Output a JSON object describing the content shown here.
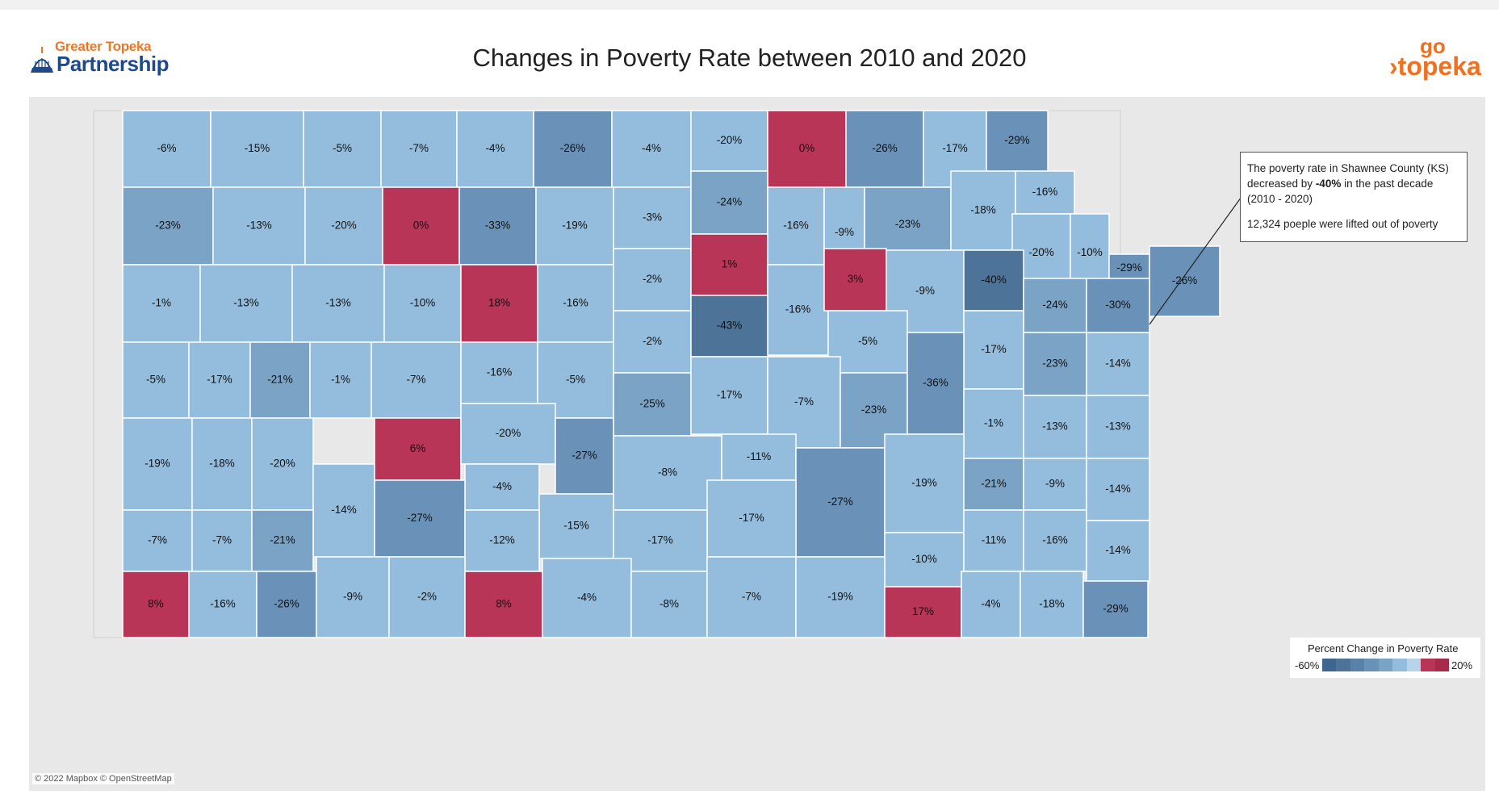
{
  "header": {
    "logo_left_line1": "Greater Topeka",
    "logo_left_line2": "Partnership",
    "title": "Changes in Poverty Rate between 2010 and 2020",
    "logo_right_line1": "go",
    "logo_right_line2": "›topeka"
  },
  "tooltip": {
    "line1": "The poverty rate in Shawnee County (KS)",
    "line2_pre": "decreased by ",
    "line2_bold": "-40%",
    "line2_post": " in the past decade",
    "line3": "(2010 - 2020)",
    "line4": "12,324 poeple were lifted out of poverty"
  },
  "legend": {
    "title": "Percent Change in Poverty Rate",
    "min_label": "-60%",
    "max_label": "20%",
    "min_value": -60,
    "max_value": 20
  },
  "attribution": "© 2022 Mapbox © OpenStreetMap",
  "colors": {
    "increase": "#b83558",
    "light": "#94bddd",
    "mid": "#7aa3c6",
    "dark": "#6a91b8",
    "darkest": "#4d7399",
    "water": "#e8e8e8"
  },
  "counties": [
    {
      "label": "-6%",
      "value": -6
    },
    {
      "label": "-15%",
      "value": -15
    },
    {
      "label": "-5%",
      "value": -5
    },
    {
      "label": "-7%",
      "value": -7
    },
    {
      "label": "-4%",
      "value": -4
    },
    {
      "label": "-26%",
      "value": -26
    },
    {
      "label": "-4%",
      "value": -4
    },
    {
      "label": "-20%",
      "value": -20
    },
    {
      "label": "0%",
      "value": 0
    },
    {
      "label": "-26%",
      "value": -26
    },
    {
      "label": "-17%",
      "value": -17
    },
    {
      "label": "-29%",
      "value": -29
    },
    {
      "label": "-23%",
      "value": -23
    },
    {
      "label": "-13%",
      "value": -13
    },
    {
      "label": "-20%",
      "value": -20
    },
    {
      "label": "0%",
      "value": 0
    },
    {
      "label": "-33%",
      "value": -33
    },
    {
      "label": "-19%",
      "value": -19
    },
    {
      "label": "-3%",
      "value": -3
    },
    {
      "label": "-24%",
      "value": -24
    },
    {
      "label": "-16%",
      "value": -16
    },
    {
      "label": "-9%",
      "value": -9
    },
    {
      "label": "-23%",
      "value": -23
    },
    {
      "label": "-18%",
      "value": -18
    },
    {
      "label": "-16%",
      "value": -16
    },
    {
      "label": "-20%",
      "value": -20
    },
    {
      "label": "-10%",
      "value": -10
    },
    {
      "label": "-29%",
      "value": -29
    },
    {
      "label": "-26%",
      "value": -26
    },
    {
      "label": "-1%",
      "value": -1
    },
    {
      "label": "-13%",
      "value": -13
    },
    {
      "label": "-13%",
      "value": -13
    },
    {
      "label": "-10%",
      "value": -10
    },
    {
      "label": "18%",
      "value": 18
    },
    {
      "label": "-16%",
      "value": -16
    },
    {
      "label": "-2%",
      "value": -2
    },
    {
      "label": "1%",
      "value": 1
    },
    {
      "label": "-16%",
      "value": -16
    },
    {
      "label": "3%",
      "value": 3
    },
    {
      "label": "-9%",
      "value": -9
    },
    {
      "label": "-40%",
      "value": -40
    },
    {
      "label": "-24%",
      "value": -24
    },
    {
      "label": "-30%",
      "value": -30
    },
    {
      "label": "-5%",
      "value": -5
    },
    {
      "label": "-17%",
      "value": -17
    },
    {
      "label": "-21%",
      "value": -21
    },
    {
      "label": "-1%",
      "value": -1
    },
    {
      "label": "-7%",
      "value": -7
    },
    {
      "label": "-16%",
      "value": -16
    },
    {
      "label": "-5%",
      "value": -5
    },
    {
      "label": "-2%",
      "value": -2
    },
    {
      "label": "-43%",
      "value": -43
    },
    {
      "label": "-5%",
      "value": -5
    },
    {
      "label": "-17%",
      "value": -17
    },
    {
      "label": "-23%",
      "value": -23
    },
    {
      "label": "-14%",
      "value": -14
    },
    {
      "label": "-25%",
      "value": -25
    },
    {
      "label": "-17%",
      "value": -17
    },
    {
      "label": "-7%",
      "value": -7
    },
    {
      "label": "-23%",
      "value": -23
    },
    {
      "label": "-36%",
      "value": -36
    },
    {
      "label": "-1%",
      "value": -1
    },
    {
      "label": "-13%",
      "value": -13
    },
    {
      "label": "-13%",
      "value": -13
    },
    {
      "label": "-19%",
      "value": -19
    },
    {
      "label": "-18%",
      "value": -18
    },
    {
      "label": "-20%",
      "value": -20
    },
    {
      "label": "-14%",
      "value": -14
    },
    {
      "label": "6%",
      "value": 6
    },
    {
      "label": "-20%",
      "value": -20
    },
    {
      "label": "-27%",
      "value": -27
    },
    {
      "label": "-8%",
      "value": -8
    },
    {
      "label": "-11%",
      "value": -11
    },
    {
      "label": "-4%",
      "value": -4
    },
    {
      "label": "-27%",
      "value": -27
    },
    {
      "label": "-19%",
      "value": -19
    },
    {
      "label": "-21%",
      "value": -21
    },
    {
      "label": "-9%",
      "value": -9
    },
    {
      "label": "-14%",
      "value": -14
    },
    {
      "label": "-27%",
      "value": -27
    },
    {
      "label": "-15%",
      "value": -15
    },
    {
      "label": "-12%",
      "value": -12
    },
    {
      "label": "-17%",
      "value": -17
    },
    {
      "label": "-10%",
      "value": -10
    },
    {
      "label": "-7%",
      "value": -7
    },
    {
      "label": "-7%",
      "value": -7
    },
    {
      "label": "-21%",
      "value": -21
    },
    {
      "label": "-17%",
      "value": -17
    },
    {
      "label": "-11%",
      "value": -11
    },
    {
      "label": "-16%",
      "value": -16
    },
    {
      "label": "-14%",
      "value": -14
    },
    {
      "label": "8%",
      "value": 8
    },
    {
      "label": "-16%",
      "value": -16
    },
    {
      "label": "-26%",
      "value": -26
    },
    {
      "label": "-9%",
      "value": -9
    },
    {
      "label": "-2%",
      "value": -2
    },
    {
      "label": "8%",
      "value": 8
    },
    {
      "label": "-4%",
      "value": -4
    },
    {
      "label": "-8%",
      "value": -8
    },
    {
      "label": "-7%",
      "value": -7
    },
    {
      "label": "-19%",
      "value": -19
    },
    {
      "label": "17%",
      "value": 17
    },
    {
      "label": "-4%",
      "value": -4
    },
    {
      "label": "-18%",
      "value": -18
    },
    {
      "label": "-29%",
      "value": -29
    }
  ]
}
